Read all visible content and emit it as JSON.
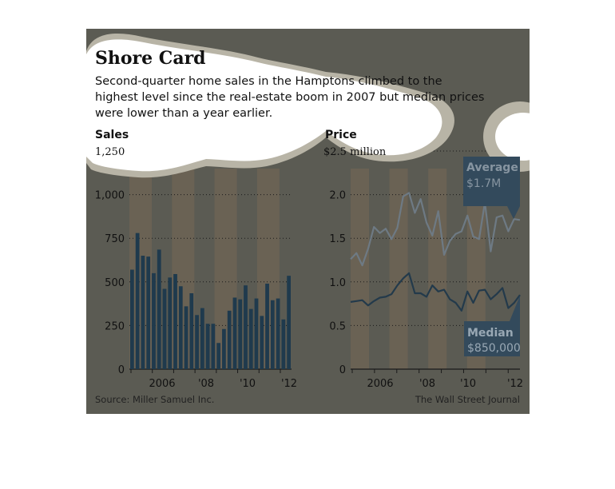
{
  "title": "Shore Card",
  "subtitle_lines": [
    "Second-quarter home sales in the Hamptons climbed to the",
    "highest level since the real-estate boom in 2007 but median prices",
    "were lower than a year earlier."
  ],
  "source": "Source: Miller Samuel Inc.",
  "credit": "The Wall Street Journal",
  "colors": {
    "background": "#5b5b53",
    "year_band": "#6a6254",
    "bars": "#1f3a4d",
    "average_line": "#6e7a84",
    "median_line": "#233a4b",
    "callout_box": "#334a5c",
    "average_callout_text": "#8795a1",
    "median_callout_text": "#99a8b4",
    "blob": "#ffffff",
    "blob_edge": "#b8b4a6"
  },
  "chart_data": [
    {
      "type": "bar",
      "header": "Sales",
      "top_tick_label": "1,250",
      "ylim": [
        0,
        1250
      ],
      "yticks": [
        0,
        250,
        500,
        750,
        1000
      ],
      "ytick_labels": [
        "0",
        "250",
        "500",
        "750",
        "1,000"
      ],
      "xtick_labels": [
        "2006",
        "'08",
        "'10",
        "'12"
      ],
      "grid": true,
      "values": [
        570,
        780,
        650,
        645,
        550,
        685,
        460,
        525,
        545,
        475,
        360,
        435,
        310,
        350,
        260,
        260,
        150,
        230,
        335,
        410,
        400,
        480,
        345,
        405,
        305,
        490,
        395,
        405,
        285,
        535
      ]
    },
    {
      "type": "line",
      "header": "Price",
      "top_tick_label": "$2.5 million",
      "ylim": [
        0,
        2.5
      ],
      "yticks": [
        0,
        0.5,
        1.0,
        1.5,
        2.0
      ],
      "ytick_labels": [
        "0",
        "0.5",
        "1.0",
        "1.5",
        "2.0"
      ],
      "xtick_labels": [
        "2006",
        "'08",
        "'10",
        "'12"
      ],
      "grid": true,
      "series": [
        {
          "name": "Average",
          "callout_value": "$1.7M",
          "values": [
            1.26,
            1.33,
            1.19,
            1.38,
            1.63,
            1.56,
            1.61,
            1.49,
            1.62,
            1.98,
            2.02,
            1.79,
            1.95,
            1.68,
            1.53,
            1.81,
            1.31,
            1.47,
            1.55,
            1.58,
            1.76,
            1.52,
            1.49,
            1.91,
            1.35,
            1.74,
            1.76,
            1.58,
            1.72,
            1.71
          ]
        },
        {
          "name": "Median",
          "callout_value": "$850,000",
          "values": [
            0.77,
            0.78,
            0.79,
            0.73,
            0.78,
            0.82,
            0.83,
            0.86,
            0.96,
            1.04,
            1.1,
            0.87,
            0.87,
            0.83,
            0.96,
            0.89,
            0.91,
            0.8,
            0.76,
            0.67,
            0.89,
            0.76,
            0.9,
            0.91,
            0.8,
            0.86,
            0.93,
            0.7,
            0.76,
            0.85
          ]
        }
      ]
    }
  ]
}
